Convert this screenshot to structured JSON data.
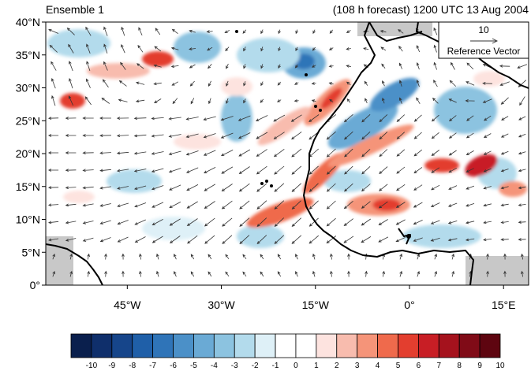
{
  "header": {
    "left_title": "Ensemble 1",
    "right_title": "(108 h forecast) 1200 UTC 13 Aug 2004"
  },
  "axes": {
    "lat_ticks": [
      {
        "value": 40,
        "label": "40°N"
      },
      {
        "value": 35,
        "label": "35°N"
      },
      {
        "value": 30,
        "label": "30°N"
      },
      {
        "value": 25,
        "label": "25°N"
      },
      {
        "value": 20,
        "label": "20°N"
      },
      {
        "value": 15,
        "label": "15°N"
      },
      {
        "value": 10,
        "label": "10°N"
      },
      {
        "value": 5,
        "label": "5°N"
      },
      {
        "value": 0,
        "label": "0°"
      }
    ],
    "lon_ticks": [
      {
        "value": -45,
        "label": "45°W"
      },
      {
        "value": -30,
        "label": "30°W"
      },
      {
        "value": -15,
        "label": "15°W"
      },
      {
        "value": 0,
        "label": "0°"
      },
      {
        "value": 15,
        "label": "15°E"
      }
    ],
    "lon_range": [
      -58,
      19
    ],
    "lat_range": [
      0,
      40
    ]
  },
  "reference_vector": {
    "magnitude_label": "10",
    "caption": "Reference Vector"
  },
  "colorbar": {
    "labels": [
      "-10",
      "-9",
      "-8",
      "-7",
      "-6",
      "-5",
      "-4",
      "-3",
      "-2",
      "-1",
      "0",
      "1",
      "2",
      "3",
      "4",
      "5",
      "6",
      "7",
      "8",
      "9",
      "10"
    ],
    "colors": [
      "#0a1f4d",
      "#0f2f6b",
      "#16458a",
      "#1f5fa8",
      "#2f74b8",
      "#4b90c8",
      "#6aaad5",
      "#8cc3e0",
      "#b3dbec",
      "#def0f7",
      "#ffffff",
      "#ffffff",
      "#fde3df",
      "#f8bcae",
      "#f59479",
      "#ef6a4c",
      "#e33e2f",
      "#c81e25",
      "#a5121d",
      "#800b17",
      "#5e0510"
    ],
    "style": "horizontal, bottom"
  },
  "palette": {
    "ocean_bg": "#ffffff",
    "missing": "#c8c8c8",
    "coast": "#000000",
    "vector": "#333333"
  }
}
